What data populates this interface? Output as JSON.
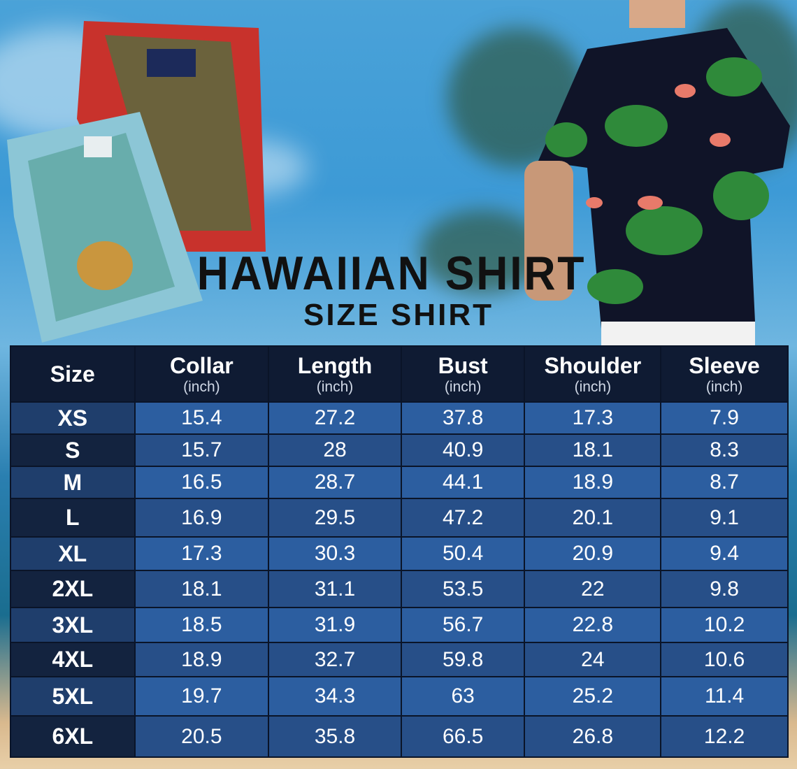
{
  "title": "HAWAIIAN SHIRT",
  "subtitle": "SIZE SHIRT",
  "table": {
    "headers": [
      {
        "label": "Size",
        "unit": ""
      },
      {
        "label": "Collar",
        "unit": "(inch)"
      },
      {
        "label": "Length",
        "unit": "(inch)"
      },
      {
        "label": "Bust",
        "unit": "(inch)"
      },
      {
        "label": "Shoulder",
        "unit": "(inch)"
      },
      {
        "label": "Sleeve",
        "unit": "(inch)"
      }
    ],
    "rows": [
      [
        "XS",
        "15.4",
        "27.2",
        "37.8",
        "17.3",
        "7.9"
      ],
      [
        "S",
        "15.7",
        "28",
        "40.9",
        "18.1",
        "8.3"
      ],
      [
        "M",
        "16.5",
        "28.7",
        "44.1",
        "18.9",
        "8.7"
      ],
      [
        "L",
        "16.9",
        "29.5",
        "47.2",
        "20.1",
        "9.1"
      ],
      [
        "XL",
        "17.3",
        "30.3",
        "50.4",
        "20.9",
        "9.4"
      ],
      [
        "2XL",
        "18.1",
        "31.1",
        "53.5",
        "22",
        "9.8"
      ],
      [
        "3XL",
        "18.5",
        "31.9",
        "56.7",
        "22.8",
        "10.2"
      ],
      [
        "4XL",
        "18.9",
        "32.7",
        "59.8",
        "24",
        "10.6"
      ],
      [
        "5XL",
        "19.7",
        "34.3",
        "63",
        "25.2",
        "11.4"
      ],
      [
        "6XL",
        "20.5",
        "35.8",
        "66.5",
        "26.8",
        "12.2"
      ]
    ]
  },
  "colors": {
    "header": "#0f1b33",
    "row_light": "#2c5ea0",
    "row_dark": "#274f88",
    "title": "#111111"
  }
}
